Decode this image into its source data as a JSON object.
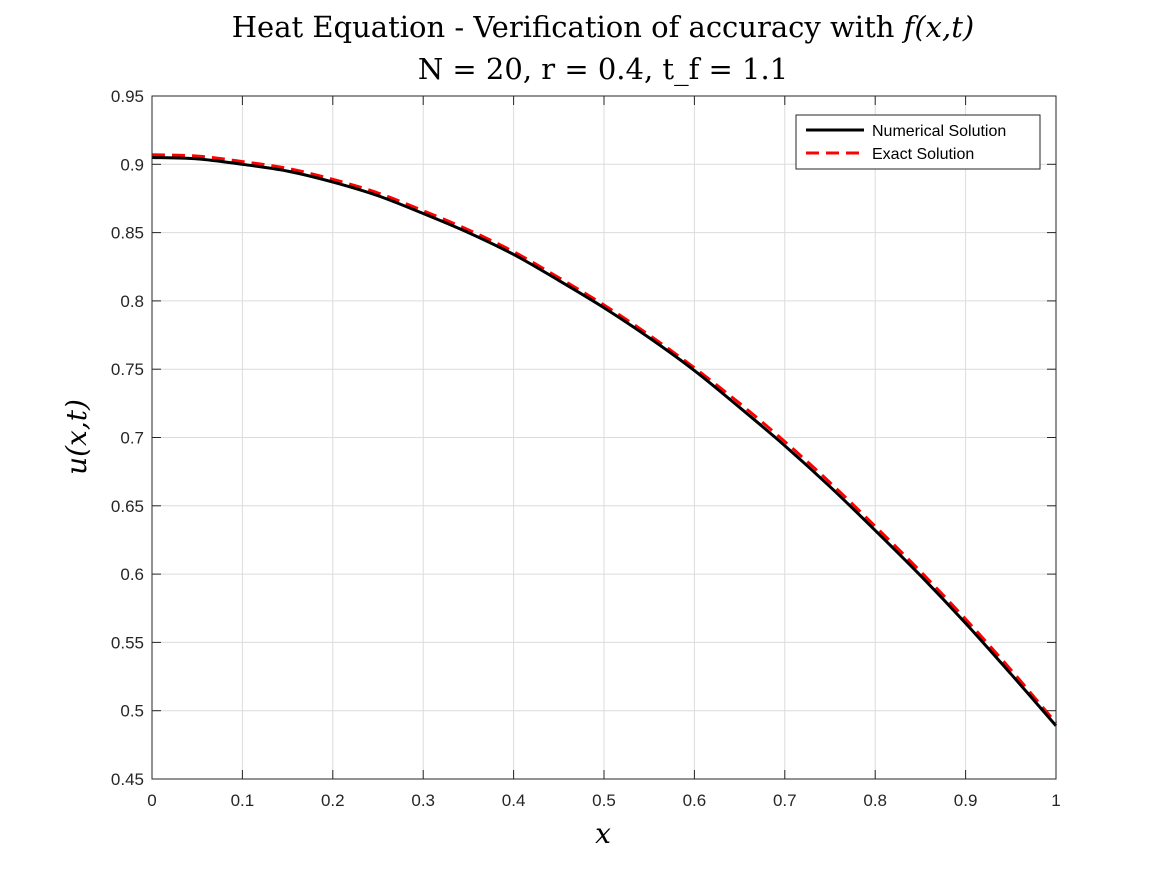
{
  "chart_data": {
    "type": "line",
    "title": "Heat Equation - Verification of accuracy with f(x,t)",
    "title_main": "Heat Equation - Verification of accuracy with ",
    "title_math": "f(x,t)",
    "subtitle": "N = 20, r = 0.4, t_f = 1.1",
    "xlabel": "x",
    "ylabel": "u(x,t)",
    "xlim": [
      0,
      1
    ],
    "ylim": [
      0.45,
      0.95
    ],
    "xticks": [
      "0",
      "0.1",
      "0.2",
      "0.3",
      "0.4",
      "0.5",
      "0.6",
      "0.7",
      "0.8",
      "0.9",
      "1"
    ],
    "yticks": [
      "0.45",
      "0.5",
      "0.55",
      "0.6",
      "0.65",
      "0.7",
      "0.75",
      "0.8",
      "0.85",
      "0.9",
      "0.95"
    ],
    "grid": true,
    "legend_position": "top-right",
    "x": [
      0,
      0.05,
      0.1,
      0.15,
      0.2,
      0.25,
      0.3,
      0.35,
      0.4,
      0.45,
      0.5,
      0.55,
      0.6,
      0.65,
      0.7,
      0.75,
      0.8,
      0.85,
      0.9,
      0.95,
      1
    ],
    "series": [
      {
        "name": "Numerical Solution",
        "color": "#000000",
        "style": "solid",
        "values": [
          0.905,
          0.904,
          0.9,
          0.895,
          0.887,
          0.877,
          0.864,
          0.85,
          0.834,
          0.815,
          0.795,
          0.773,
          0.749,
          0.722,
          0.694,
          0.664,
          0.632,
          0.599,
          0.564,
          0.527,
          0.489
        ]
      },
      {
        "name": "Exact Solution",
        "color": "#ff0000",
        "style": "dashed",
        "values": [
          0.907,
          0.906,
          0.902,
          0.897,
          0.889,
          0.879,
          0.866,
          0.852,
          0.836,
          0.817,
          0.797,
          0.775,
          0.751,
          0.725,
          0.697,
          0.667,
          0.635,
          0.602,
          0.567,
          0.53,
          0.491
        ]
      }
    ]
  }
}
